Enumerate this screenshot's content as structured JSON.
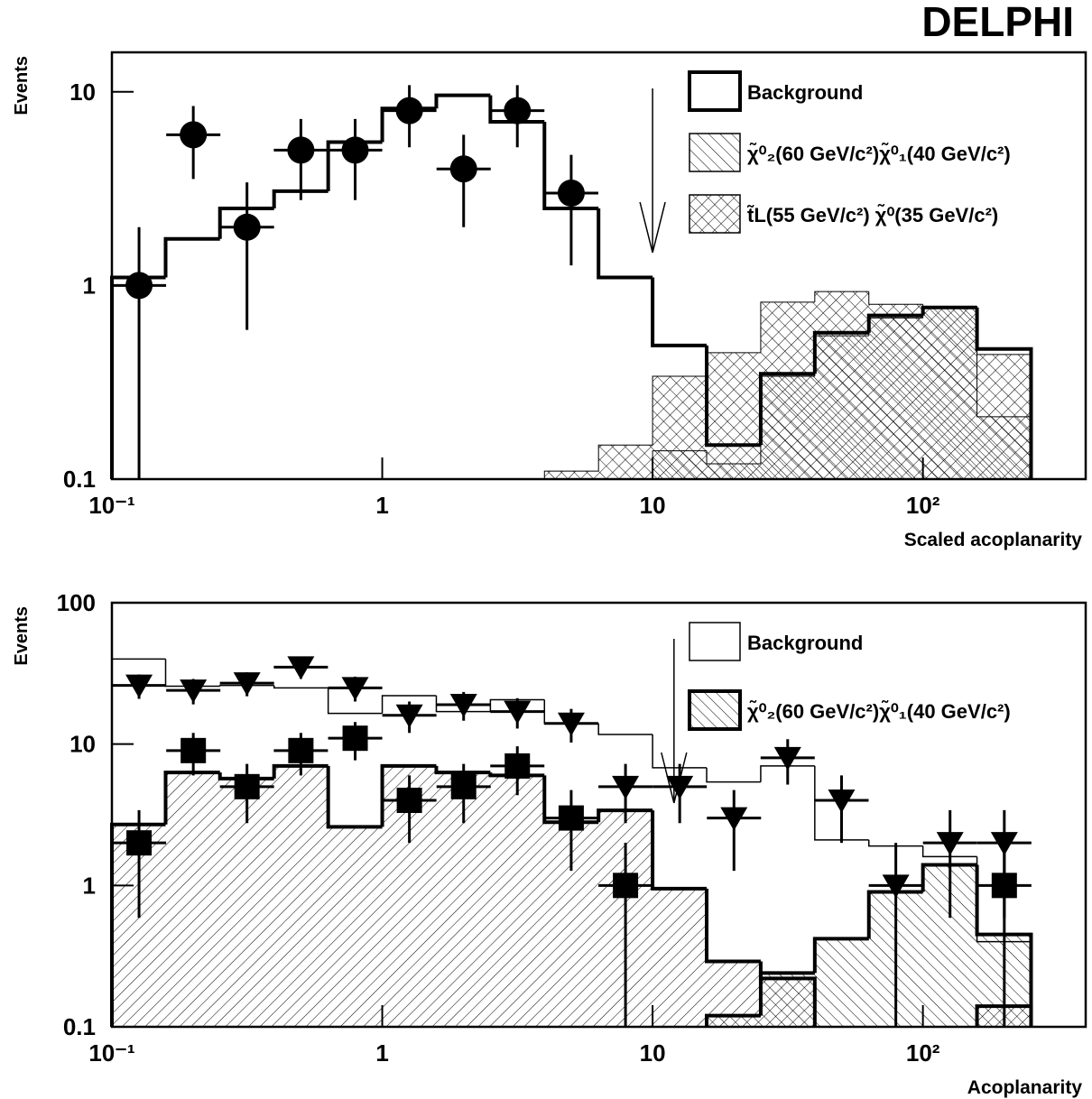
{
  "chart_data": [
    {
      "type": "histogram",
      "title": "DELPHI",
      "xlabel": "Scaled acoplanarity",
      "ylabel": "Events",
      "xlog": true,
      "ylog": true,
      "xlim": [
        0.1,
        400
      ],
      "ylim": [
        0.1,
        16
      ],
      "xticks": [
        {
          "value": 0.1,
          "label": "10⁻¹"
        },
        1,
        10,
        {
          "value": 100,
          "label": "10²"
        }
      ],
      "yticks": [
        0.1,
        1,
        10
      ],
      "legend": "upper right",
      "cut": 10,
      "bins": [
        0.1,
        0.158,
        0.251,
        0.398,
        0.631,
        1,
        1.585,
        2.512,
        3.981,
        6.31,
        10,
        15.85,
        25.12,
        39.81,
        63.1,
        100,
        158.5,
        251.2
      ],
      "series": [
        {
          "name": "Background",
          "color": "#000000",
          "hatch": "none",
          "line_width": 4,
          "values": [
            1.1,
            1.74,
            2.5,
            3.07,
            5.5,
            8.2,
            9.6,
            7.0,
            2.5,
            1.1,
            0.49,
            0.15,
            0.35,
            0.57,
            0.7,
            0.77,
            0.47
          ]
        },
        {
          "name": "χ̃⁰₂(60 GeV/c²)χ̃⁰₁(40 GeV/c²)",
          "color": "#000000",
          "hatch": "back",
          "line_width": 1,
          "values": [
            null,
            null,
            null,
            null,
            null,
            null,
            null,
            null,
            null,
            null,
            0.14,
            0.12,
            0.34,
            0.55,
            0.68,
            0.77,
            0.21
          ]
        },
        {
          "name": "t̃L(55 GeV/c²) χ̃⁰(35 GeV/c²)",
          "color": "#000000",
          "hatch": "cross",
          "line_width": 1,
          "values": [
            null,
            null,
            null,
            null,
            null,
            null,
            null,
            null,
            0.11,
            0.15,
            0.34,
            0.45,
            0.82,
            0.93,
            0.8,
            0.78,
            0.44
          ]
        },
        {
          "marker": "circle",
          "color": "#000000",
          "x": [
            0.126,
            0.2,
            0.316,
            0.5,
            0.794,
            1.26,
            2.0,
            3.16,
            5.0
          ],
          "values": [
            1,
            6,
            2,
            5,
            5,
            8,
            4,
            8,
            3
          ],
          "errors": [
            1,
            2.45,
            1.41,
            2.24,
            2.24,
            2.83,
            2,
            2.83,
            1.73
          ]
        }
      ]
    },
    {
      "type": "histogram",
      "xlabel": "Acoplanarity",
      "ylabel": "Events",
      "xlog": true,
      "ylog": true,
      "xlim": [
        0.1,
        400
      ],
      "ylim": [
        0.1,
        100
      ],
      "xticks": [
        {
          "value": 0.1,
          "label": "10⁻¹"
        },
        1,
        10,
        {
          "value": 100,
          "label": "10²"
        }
      ],
      "yticks": [
        0.1,
        1,
        10,
        100
      ],
      "legend": "upper right",
      "cut": 12,
      "bins": [
        0.1,
        0.158,
        0.251,
        0.398,
        0.631,
        1,
        1.585,
        2.512,
        3.981,
        6.31,
        10,
        15.85,
        25.12,
        39.81,
        63.1,
        100,
        158.5,
        251.2
      ],
      "series": [
        {
          "name": "Background",
          "color": "#000000",
          "hatch": "none",
          "line_width": 1.5,
          "values": [
            40,
            25.7,
            26,
            25,
            16.5,
            22,
            17,
            20.6,
            14,
            11.7,
            6.8,
            5.4,
            7,
            2.1,
            1.9,
            1.6,
            0.4
          ]
        },
        {
          "color": "#000000",
          "hatch": "fwd",
          "line_width": 4,
          "values": [
            2.7,
            6.3,
            5.7,
            7,
            2.6,
            7,
            6.3,
            6,
            2.8,
            3.4,
            0.95,
            0.29,
            0.22,
            null,
            null,
            null,
            0.14
          ]
        },
        {
          "name": "χ̃⁰₂(60 GeV/c²)χ̃⁰₁(40 GeV/c²)",
          "color": "#000000",
          "hatch": "back",
          "line_width": 4,
          "values": [
            null,
            null,
            null,
            null,
            null,
            null,
            null,
            null,
            null,
            null,
            null,
            0.12,
            0.24,
            0.42,
            0.9,
            1.4,
            0.45
          ]
        },
        {
          "marker": "triangle",
          "color": "#000000",
          "x": [
            0.126,
            0.2,
            0.316,
            0.5,
            0.794,
            1.26,
            2.0,
            3.16,
            5.0,
            7.94,
            12.6,
            20,
            31.6,
            50,
            79.4,
            126,
            200
          ],
          "values": [
            26,
            24,
            27,
            35,
            25,
            16,
            19,
            17,
            14,
            5,
            5,
            3,
            8,
            4,
            1,
            2,
            2
          ],
          "errors": [
            5.1,
            4.9,
            5.2,
            5.92,
            5,
            4,
            4.36,
            4.12,
            3.74,
            2.24,
            2.24,
            1.73,
            2.83,
            2,
            1,
            1.41,
            1.41
          ]
        },
        {
          "marker": "square",
          "color": "#000000",
          "x": [
            0.126,
            0.2,
            0.316,
            0.5,
            0.794,
            1.26,
            2.0,
            3.16,
            5.0,
            7.94,
            200
          ],
          "values": [
            2,
            9,
            5,
            9,
            11,
            4,
            5,
            7,
            3,
            1,
            1
          ],
          "errors": [
            1.41,
            3,
            2.24,
            3,
            3.32,
            2,
            2.24,
            2.65,
            1.73,
            1,
            1
          ]
        }
      ]
    }
  ]
}
